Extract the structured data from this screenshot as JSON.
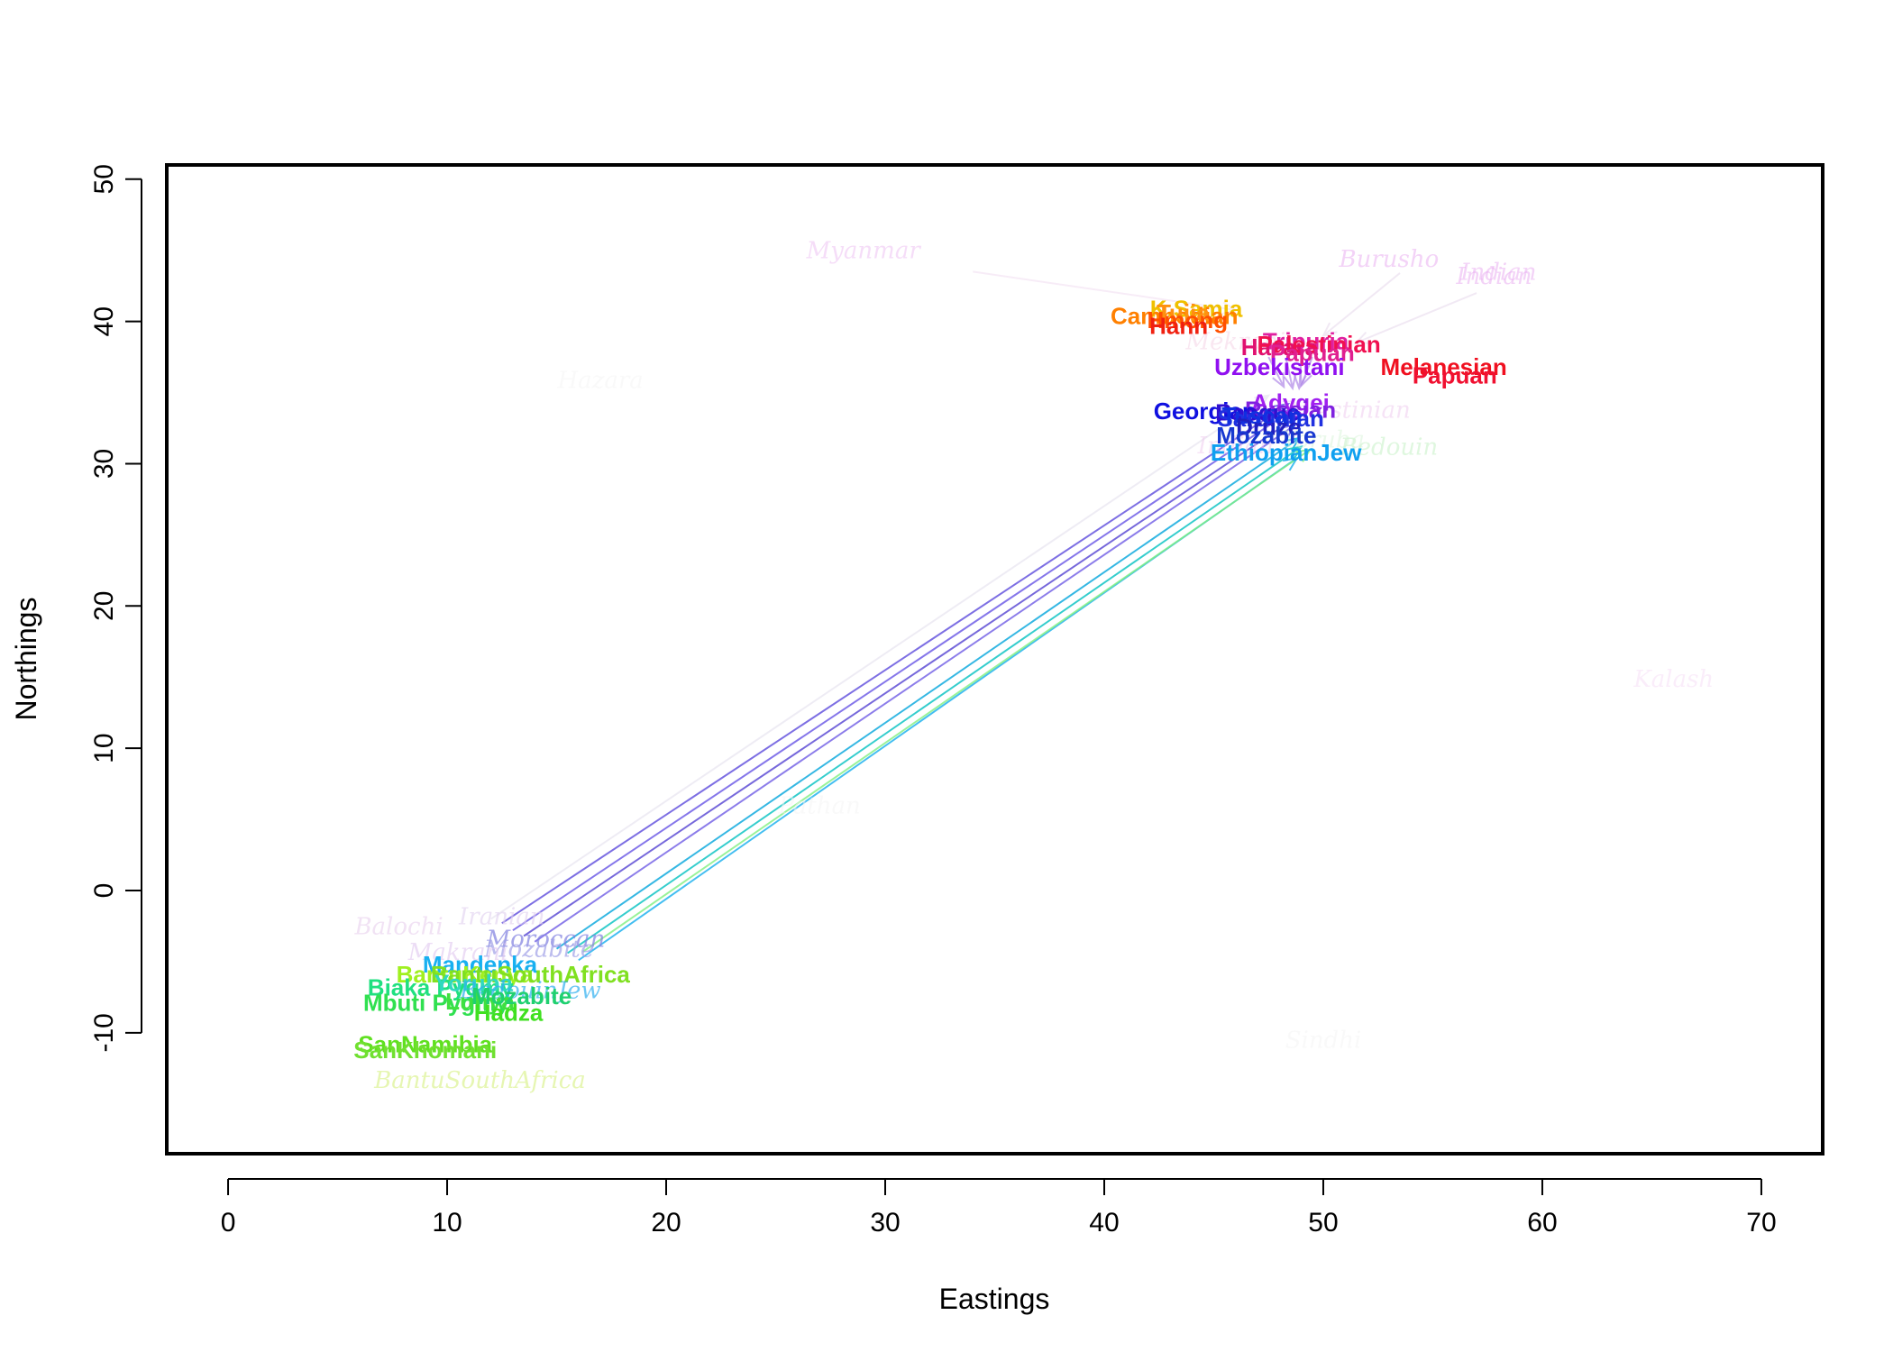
{
  "chart_data": {
    "type": "scatter",
    "title": "",
    "xlabel": "Eastings",
    "ylabel": "Northings",
    "xlim": [
      -2.8,
      72.8
    ],
    "ylim": [
      -18.5,
      51
    ],
    "xticks": [
      0,
      10,
      20,
      30,
      40,
      50,
      60,
      70
    ],
    "yticks": [
      -10,
      0,
      10,
      20,
      30,
      40,
      50
    ],
    "ytick_labels": [
      "-10",
      "0",
      "10",
      "20",
      "30",
      "40",
      "50"
    ],
    "labels": [
      {
        "name": "Myanmar",
        "x": 29,
        "y": 45,
        "style": "italic",
        "color": "#f0c8f4",
        "opacity": 0.6
      },
      {
        "name": "Burusho",
        "x": 53,
        "y": 44.4,
        "style": "italic",
        "color": "#e8a8f0",
        "opacity": 0.5
      },
      {
        "name": "Indian",
        "x": 58,
        "y": 43.5,
        "style": "italic",
        "color": "#e8a8f0",
        "opacity": 0.5
      },
      {
        "name": "Indian",
        "x": 57.8,
        "y": 43.2,
        "style": "italic",
        "color": "#e8a8f0",
        "opacity": 0.5
      },
      {
        "name": "Kalash",
        "x": 66,
        "y": 14.9,
        "style": "italic",
        "color": "#f4d8f4",
        "opacity": 0.45
      },
      {
        "name": "Indian",
        "x": 46,
        "y": 31.3,
        "style": "italic",
        "color": "#eec8ee",
        "opacity": 0.5
      },
      {
        "name": "Mekrani",
        "x": 46,
        "y": 38.6,
        "style": "italic",
        "color": "#f4d0e4",
        "opacity": 0.5
      },
      {
        "name": "Palestinian",
        "x": 51,
        "y": 33.8,
        "style": "italic",
        "color": "#eec8ee",
        "opacity": 0.5
      },
      {
        "name": "Bedouin",
        "x": 53,
        "y": 31.2,
        "style": "italic",
        "color": "#c0f0c0",
        "opacity": 0.5
      },
      {
        "name": "Yoruba",
        "x": 50,
        "y": 31.7,
        "style": "italic",
        "color": "#d8f4d8",
        "opacity": 0.5
      },
      {
        "name": "Hazara",
        "x": 17,
        "y": 35.9,
        "style": "italic",
        "color": "#f4f4f4",
        "opacity": 0.5
      },
      {
        "name": "Pathan",
        "x": 27,
        "y": 6.0,
        "style": "italic",
        "color": "#f4f4f4",
        "opacity": 0.5
      },
      {
        "name": "Sindhi",
        "x": 50,
        "y": -10.5,
        "style": "italic",
        "color": "#f4f4f4",
        "opacity": 0.5
      },
      {
        "name": "Balochi",
        "x": 7.8,
        "y": -2.5,
        "style": "italic",
        "color": "#e8d0ee",
        "opacity": 0.6
      },
      {
        "name": "Iranian",
        "x": 12.5,
        "y": -1.8,
        "style": "italic",
        "color": "#e0d0f0",
        "opacity": 0.6
      },
      {
        "name": "Moroccan",
        "x": 14.5,
        "y": -3.4,
        "style": "italic",
        "color": "#8080e0",
        "opacity": 0.7
      },
      {
        "name": "Mozabite",
        "x": 14.2,
        "y": -4.1,
        "style": "italic",
        "color": "#a0a0e8",
        "opacity": 0.7
      },
      {
        "name": "Makrani",
        "x": 10.5,
        "y": -4.3,
        "style": "italic",
        "color": "#e0c8f0",
        "opacity": 0.6
      },
      {
        "name": "BantuSouthAfrica",
        "x": 11.5,
        "y": -13.3,
        "style": "italic",
        "color": "#e0f4a0",
        "opacity": 0.8
      },
      {
        "name": "Mandenka",
        "x": 11.5,
        "y": -5.2,
        "style": "bold",
        "color": "#18b0f0",
        "opacity": 1
      },
      {
        "name": "BantuKenya",
        "x": 10.8,
        "y": -5.9,
        "style": "bold",
        "color": "#a0f020",
        "opacity": 1
      },
      {
        "name": "BantuSouthAfrica",
        "x": 13.8,
        "y": -5.9,
        "style": "bold",
        "color": "#80e020",
        "opacity": 1
      },
      {
        "name": "Biaka Pygmy",
        "x": 9.7,
        "y": -6.8,
        "style": "bold",
        "color": "#20e080",
        "opacity": 1
      },
      {
        "name": "Yoruba",
        "x": 11.2,
        "y": -6.5,
        "style": "bold",
        "color": "#30d8c0",
        "opacity": 1
      },
      {
        "name": "BedouinJew",
        "x": 13.8,
        "y": -7.0,
        "style": "italic",
        "color": "#30b0f0",
        "opacity": 0.7
      },
      {
        "name": "Mbuti Pygmy",
        "x": 9.5,
        "y": -7.9,
        "style": "bold",
        "color": "#30e050",
        "opacity": 1
      },
      {
        "name": "Luhya",
        "x": 11.5,
        "y": -7.8,
        "style": "bold",
        "color": "#40e040",
        "opacity": 1
      },
      {
        "name": "Mozabite",
        "x": 13.4,
        "y": -7.4,
        "style": "bold",
        "color": "#20d070",
        "opacity": 1
      },
      {
        "name": "Hadza",
        "x": 12.8,
        "y": -8.6,
        "style": "bold",
        "color": "#40e020",
        "opacity": 1
      },
      {
        "name": "SanNamibia",
        "x": 9.0,
        "y": -10.8,
        "style": "bold",
        "color": "#60e020",
        "opacity": 1
      },
      {
        "name": "SanKhomani",
        "x": 9.0,
        "y": -11.2,
        "style": "bold",
        "color": "#70e030",
        "opacity": 1
      },
      {
        "name": "K.Samia",
        "x": 44.2,
        "y": 40.9,
        "style": "bold",
        "color": "#f0c000",
        "opacity": 1
      },
      {
        "name": "Cambodian",
        "x": 43.2,
        "y": 40.4,
        "style": "bold",
        "color": "#ff8000",
        "opacity": 1
      },
      {
        "name": "Tujia",
        "x": 43.6,
        "y": 40.6,
        "style": "bold",
        "color": "#ff9010",
        "opacity": 1
      },
      {
        "name": "Hmong",
        "x": 43.8,
        "y": 40.1,
        "style": "bold",
        "color": "#ff5000",
        "opacity": 1
      },
      {
        "name": "Hann",
        "x": 43.4,
        "y": 39.7,
        "style": "bold",
        "color": "#f02010",
        "opacity": 1
      },
      {
        "name": "Tripuria",
        "x": 49.2,
        "y": 38.6,
        "style": "bold",
        "color": "#e020a0",
        "opacity": 1
      },
      {
        "name": "Hazara",
        "x": 48.0,
        "y": 38.2,
        "style": "bold",
        "color": "#e01070",
        "opacity": 1
      },
      {
        "name": "Palestinian",
        "x": 49.8,
        "y": 38.4,
        "style": "bold",
        "color": "#f01050",
        "opacity": 1
      },
      {
        "name": "Papuan",
        "x": 49.5,
        "y": 37.8,
        "style": "bold",
        "color": "#e02090",
        "opacity": 1
      },
      {
        "name": "Melanesian",
        "x": 55.5,
        "y": 36.8,
        "style": "bold",
        "color": "#f01020",
        "opacity": 1
      },
      {
        "name": "Papuan",
        "x": 56.0,
        "y": 36.2,
        "style": "bold",
        "color": "#f01030",
        "opacity": 1
      },
      {
        "name": "Uzbekistani",
        "x": 48.0,
        "y": 36.8,
        "style": "bold",
        "color": "#9010f0",
        "opacity": 1
      },
      {
        "name": "Adygei",
        "x": 48.5,
        "y": 34.3,
        "style": "bold",
        "color": "#a020f0",
        "opacity": 1
      },
      {
        "name": "Russian",
        "x": 48.5,
        "y": 33.8,
        "style": "bold",
        "color": "#8020e0",
        "opacity": 1
      },
      {
        "name": "Georgian",
        "x": 44.6,
        "y": 33.7,
        "style": "bold",
        "color": "#1010e0",
        "opacity": 1
      },
      {
        "name": "Basque",
        "x": 47.0,
        "y": 33.6,
        "style": "bold",
        "color": "#3010d0",
        "opacity": 1
      },
      {
        "name": "Sardinian",
        "x": 47.6,
        "y": 33.2,
        "style": "bold",
        "color": "#2030e0",
        "opacity": 1
      },
      {
        "name": "Tuscan",
        "x": 47.2,
        "y": 33.4,
        "style": "bold",
        "color": "#1030e0",
        "opacity": 1
      },
      {
        "name": "Druze",
        "x": 47.5,
        "y": 32.6,
        "style": "bold",
        "color": "#2020c0",
        "opacity": 1
      },
      {
        "name": "Mozabite",
        "x": 47.4,
        "y": 32.0,
        "style": "bold",
        "color": "#1838d0",
        "opacity": 1
      },
      {
        "name": "EthiopianJew",
        "x": 48.3,
        "y": 30.8,
        "style": "bold",
        "color": "#10a0f0",
        "opacity": 1
      }
    ],
    "arrows": [
      {
        "x0": 12.5,
        "y0": -2.3,
        "x1": 48.4,
        "y1": 34.2,
        "color": "#7060e0",
        "opacity": 0.9
      },
      {
        "x0": 13.0,
        "y0": -2.8,
        "x1": 48.6,
        "y1": 33.8,
        "color": "#7868e8",
        "opacity": 0.9
      },
      {
        "x0": 13.5,
        "y0": -3.2,
        "x1": 48.8,
        "y1": 33.3,
        "color": "#6858d8",
        "opacity": 0.9
      },
      {
        "x0": 14.0,
        "y0": -3.6,
        "x1": 48.7,
        "y1": 32.7,
        "color": "#8070e8",
        "opacity": 0.9
      },
      {
        "x0": 15.0,
        "y0": -4.1,
        "x1": 48.9,
        "y1": 31.8,
        "color": "#20b0e0",
        "opacity": 0.9
      },
      {
        "x0": 15.5,
        "y0": -4.4,
        "x1": 49.0,
        "y1": 31.2,
        "color": "#20c8c8",
        "opacity": 0.9
      },
      {
        "x0": 16.0,
        "y0": -4.9,
        "x1": 48.8,
        "y1": 30.4,
        "color": "#30b8f0",
        "opacity": 0.9
      },
      {
        "x0": 16.2,
        "y0": -4.3,
        "x1": 49.4,
        "y1": 31.0,
        "color": "#80f080",
        "opacity": 0.8
      },
      {
        "x0": 12.0,
        "y0": -2.0,
        "x1": 47.5,
        "y1": 34.8,
        "color": "#e8e4f0",
        "opacity": 0.7
      },
      {
        "x0": 34.0,
        "y0": 43.5,
        "x1": 46.0,
        "y1": 40.8,
        "color": "#f4e4f4",
        "opacity": 0.7
      },
      {
        "x0": 53.5,
        "y0": 43.4,
        "x1": 50.0,
        "y1": 39.0,
        "color": "#ece0f0",
        "opacity": 0.7
      },
      {
        "x0": 57.0,
        "y0": 42.0,
        "x1": 51.5,
        "y1": 38.5,
        "color": "#ece0f0",
        "opacity": 0.7
      },
      {
        "x0": 47.5,
        "y0": 37.5,
        "x1": 48.2,
        "y1": 35.4,
        "color": "#b088e8",
        "opacity": 0.7
      },
      {
        "x0": 48.3,
        "y0": 37.4,
        "x1": 48.6,
        "y1": 35.3,
        "color": "#b088e8",
        "opacity": 0.7
      },
      {
        "x0": 49.0,
        "y0": 37.4,
        "x1": 48.9,
        "y1": 35.3,
        "color": "#b088e8",
        "opacity": 0.7
      },
      {
        "x0": 49.5,
        "y0": 37.5,
        "x1": 49.0,
        "y1": 35.5,
        "color": "#b088e8",
        "opacity": 0.7
      }
    ]
  }
}
